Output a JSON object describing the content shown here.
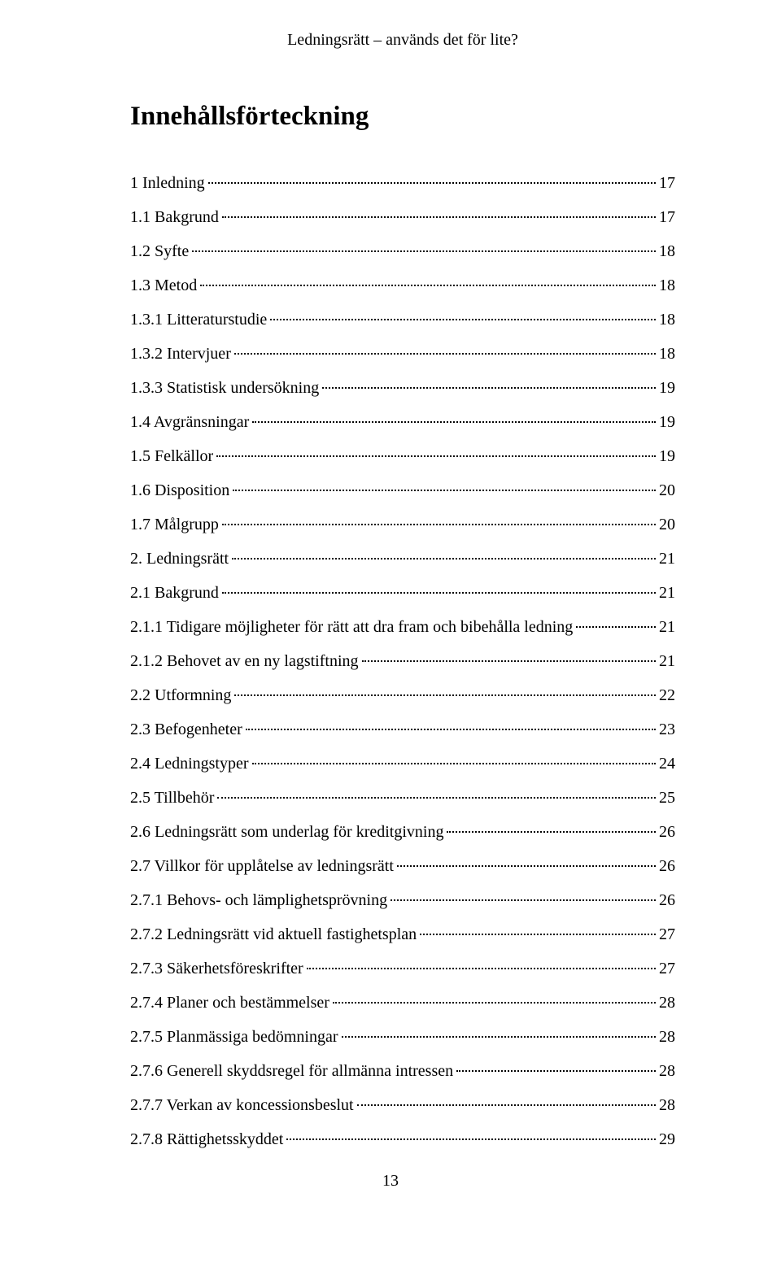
{
  "header": {
    "title": "Ledningsrätt – används det för lite?"
  },
  "heading": "Innehållsförteckning",
  "toc": [
    {
      "label": "1 Inledning",
      "page": "17",
      "indent": 0
    },
    {
      "label": "1.1 Bakgrund",
      "page": "17",
      "indent": 1
    },
    {
      "label": "1.2 Syfte",
      "page": "18",
      "indent": 1
    },
    {
      "label": "1.3 Metod",
      "page": "18",
      "indent": 1
    },
    {
      "label": "1.3.1 Litteraturstudie",
      "page": "18",
      "indent": 2
    },
    {
      "label": "1.3.2 Intervjuer",
      "page": "18",
      "indent": 2
    },
    {
      "label": "1.3.3 Statistisk undersökning",
      "page": "19",
      "indent": 2
    },
    {
      "label": "1.4 Avgränsningar",
      "page": "19",
      "indent": 1
    },
    {
      "label": "1.5 Felkällor",
      "page": "19",
      "indent": 1
    },
    {
      "label": "1.6 Disposition",
      "page": "20",
      "indent": 1
    },
    {
      "label": "1.7 Målgrupp",
      "page": "20",
      "indent": 1
    },
    {
      "label": "2. Ledningsrätt",
      "page": "21",
      "indent": 0
    },
    {
      "label": "2.1 Bakgrund",
      "page": "21",
      "indent": 1
    },
    {
      "label": "2.1.1 Tidigare möjligheter för rätt att dra fram och bibehålla ledning",
      "page": "21",
      "indent": 2
    },
    {
      "label": "2.1.2 Behovet av en ny lagstiftning",
      "page": "21",
      "indent": 2
    },
    {
      "label": "2.2 Utformning",
      "page": "22",
      "indent": 1
    },
    {
      "label": "2.3 Befogenheter",
      "page": "23",
      "indent": 1
    },
    {
      "label": "2.4 Ledningstyper",
      "page": "24",
      "indent": 1
    },
    {
      "label": "2.5 Tillbehör",
      "page": "25",
      "indent": 1
    },
    {
      "label": "2.6 Ledningsrätt som underlag för kreditgivning",
      "page": "26",
      "indent": 1
    },
    {
      "label": "2.7 Villkor för upplåtelse av ledningsrätt",
      "page": "26",
      "indent": 1
    },
    {
      "label": "2.7.1 Behovs- och lämplighetsprövning",
      "page": "26",
      "indent": 2
    },
    {
      "label": "2.7.2 Ledningsrätt vid aktuell fastighetsplan",
      "page": "27",
      "indent": 2
    },
    {
      "label": "2.7.3 Säkerhetsföreskrifter",
      "page": "27",
      "indent": 2
    },
    {
      "label": "2.7.4 Planer och bestämmelser",
      "page": "28",
      "indent": 2
    },
    {
      "label": "2.7.5 Planmässiga bedömningar",
      "page": "28",
      "indent": 2
    },
    {
      "label": "2.7.6 Generell skyddsregel för allmänna intressen",
      "page": "28",
      "indent": 2
    },
    {
      "label": "2.7.7 Verkan av koncessionsbeslut",
      "page": "28",
      "indent": 2
    },
    {
      "label": "2.7.8 Rättighetsskyddet",
      "page": "29",
      "indent": 2
    }
  ],
  "pageNumber": "13"
}
